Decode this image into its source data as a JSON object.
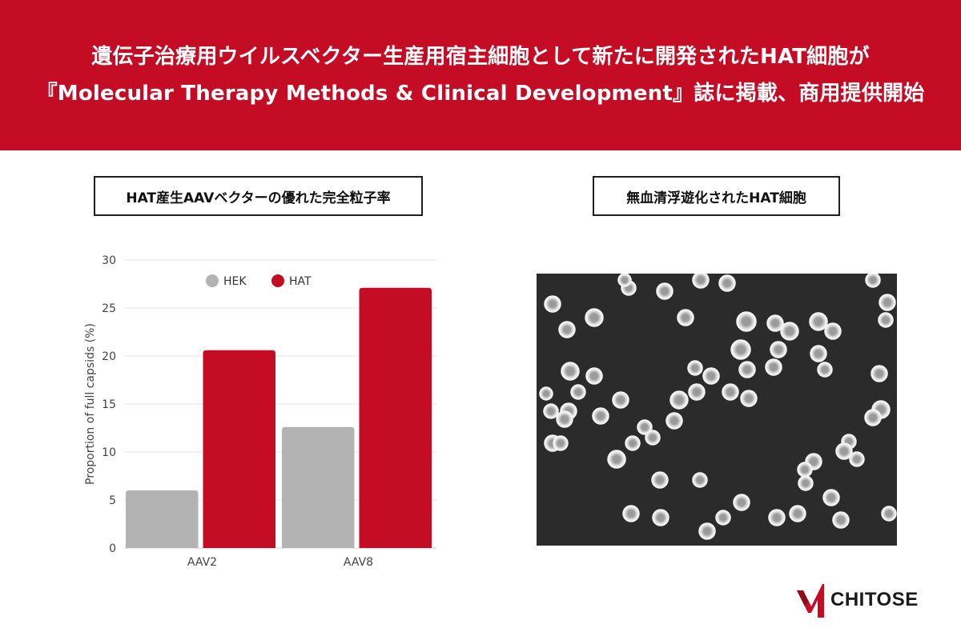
{
  "header": {
    "line1": "遺伝子治療用ウイルスベクター生産用宿主細胞として新たに開発されたHAT細胞が",
    "line2": "『Molecular Therapy Methods & Clinical Development』誌に掲載、商用提供開始",
    "background_color": "#c40c25"
  },
  "left_panel": {
    "title": "HAT産生AAVベクターの優れた完全粒子率"
  },
  "right_panel": {
    "title": "無血清浮遊化されたHAT細胞"
  },
  "logo": {
    "text": "CHITOSE",
    "mark_color": "#c40c25"
  },
  "chart_data": {
    "type": "bar",
    "categories": [
      "AAV2",
      "AAV8"
    ],
    "series": [
      {
        "name": "HEK",
        "color": "#b3b3b3",
        "values": [
          6.0,
          12.6
        ]
      },
      {
        "name": "HAT",
        "color": "#c40c25",
        "values": [
          20.6,
          27.1
        ]
      }
    ],
    "ylabel": "Proportion of full capsids (%)",
    "xlabel": "",
    "ylim": [
      0,
      30
    ],
    "yticks": [
      0,
      5,
      10,
      15,
      20,
      25,
      30
    ],
    "grid": true,
    "legend": "top-center"
  }
}
